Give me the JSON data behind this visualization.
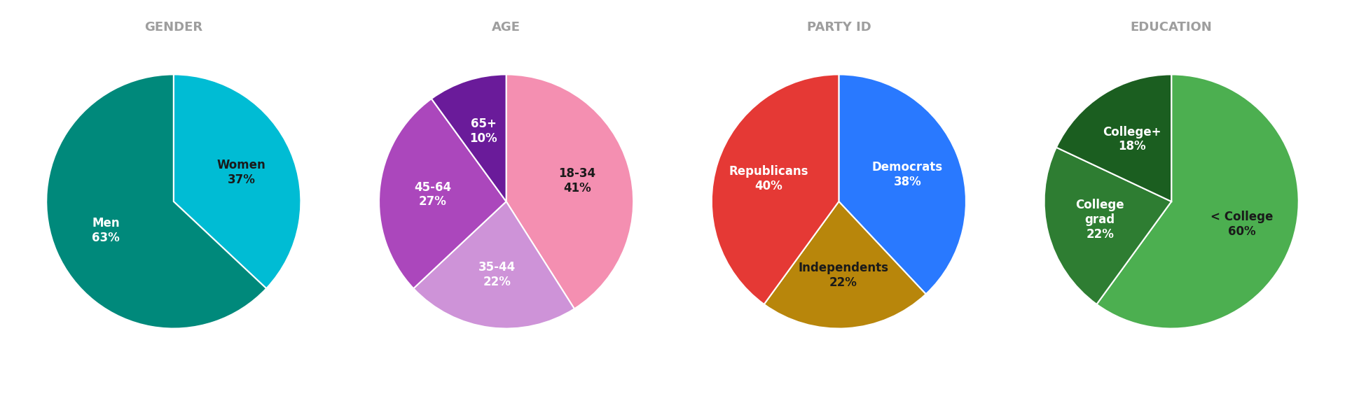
{
  "charts": [
    {
      "title": "GENDER",
      "labels": [
        "Women",
        "Men"
      ],
      "values": [
        37,
        63
      ],
      "colors": [
        "#00BCD4",
        "#00897B"
      ],
      "text_colors": [
        "#1a1a1a",
        "#ffffff"
      ],
      "label_lines": [
        "Women\n37%",
        "Men\n63%"
      ],
      "startangle": 90
    },
    {
      "title": "AGE",
      "labels": [
        "18-34",
        "35-44",
        "45-64",
        "65+"
      ],
      "values": [
        41,
        22,
        27,
        10
      ],
      "colors": [
        "#F48FB1",
        "#CE93D8",
        "#AB47BC",
        "#6A1B9A"
      ],
      "text_colors": [
        "#1a1a1a",
        "#ffffff",
        "#ffffff",
        "#ffffff"
      ],
      "label_lines": [
        "18-34\n41%",
        "35-44\n22%",
        "45-64\n27%",
        "65+\n10%"
      ],
      "startangle": 90
    },
    {
      "title": "PARTY ID",
      "labels": [
        "Democrats",
        "Independents",
        "Republicans"
      ],
      "values": [
        38,
        22,
        40
      ],
      "colors": [
        "#2979FF",
        "#B8860B",
        "#E53935"
      ],
      "text_colors": [
        "#ffffff",
        "#1a1a1a",
        "#ffffff"
      ],
      "label_lines": [
        "Democrats\n38%",
        "Independents\n22%",
        "Republicans\n40%"
      ],
      "startangle": 90
    },
    {
      "title": "EDUCATION",
      "labels": [
        "< College",
        "College\ngrad",
        "College+"
      ],
      "values": [
        60,
        22,
        18
      ],
      "colors": [
        "#4CAF50",
        "#2E7D32",
        "#1B5E20"
      ],
      "text_colors": [
        "#1a1a1a",
        "#ffffff",
        "#ffffff"
      ],
      "label_lines": [
        "< College\n60%",
        "College\ngrad\n22%",
        "College+\n18%"
      ],
      "startangle": 90
    }
  ],
  "background_color": "#ffffff",
  "title_color": "#9E9E9E",
  "title_fontsize": 13,
  "label_fontsize": 12,
  "title_fontweight": "bold"
}
